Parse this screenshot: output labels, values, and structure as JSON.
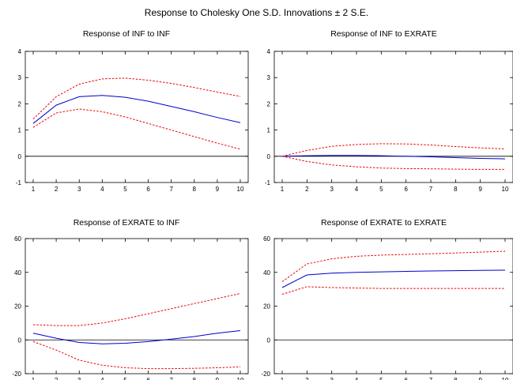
{
  "figure_title": "Response to Cholesky One S.D. Innovations ± 2 S.E.",
  "colors": {
    "response": "#0000cc",
    "band": "#ee0000",
    "axis": "#000000"
  },
  "chart_data": [
    {
      "type": "line",
      "title": "Response of INF to INF",
      "x": [
        1,
        2,
        3,
        4,
        5,
        6,
        7,
        8,
        9,
        10
      ],
      "ylim": [
        -1,
        4
      ],
      "yticks": [
        -1,
        0,
        1,
        2,
        3,
        4
      ],
      "series": [
        {
          "role": "lower",
          "values": [
            1.1,
            1.65,
            1.8,
            1.7,
            1.5,
            1.25,
            1.0,
            0.75,
            0.5,
            0.27
          ]
        },
        {
          "role": "response",
          "values": [
            1.25,
            1.95,
            2.27,
            2.32,
            2.25,
            2.1,
            1.9,
            1.7,
            1.48,
            1.28
          ]
        },
        {
          "role": "upper",
          "values": [
            1.42,
            2.27,
            2.75,
            2.95,
            2.98,
            2.9,
            2.78,
            2.62,
            2.45,
            2.28
          ]
        }
      ]
    },
    {
      "type": "line",
      "title": "Response of INF to EXRATE",
      "x": [
        1,
        2,
        3,
        4,
        5,
        6,
        7,
        8,
        9,
        10
      ],
      "ylim": [
        -1,
        4
      ],
      "yticks": [
        -1,
        0,
        1,
        2,
        3,
        4
      ],
      "series": [
        {
          "role": "lower",
          "values": [
            0,
            -0.2,
            -0.33,
            -0.4,
            -0.45,
            -0.47,
            -0.48,
            -0.49,
            -0.5,
            -0.5
          ]
        },
        {
          "role": "response",
          "values": [
            0,
            0.02,
            0.03,
            0.03,
            0.02,
            0.0,
            -0.02,
            -0.05,
            -0.08,
            -0.1
          ]
        },
        {
          "role": "upper",
          "values": [
            0,
            0.22,
            0.38,
            0.45,
            0.48,
            0.47,
            0.43,
            0.37,
            0.32,
            0.28
          ]
        }
      ]
    },
    {
      "type": "line",
      "title": "Response of EXRATE to INF",
      "x": [
        1,
        2,
        3,
        4,
        5,
        6,
        7,
        8,
        9,
        10
      ],
      "ylim": [
        -20,
        60
      ],
      "yticks": [
        -20,
        0,
        20,
        40,
        60
      ],
      "series": [
        {
          "role": "lower",
          "values": [
            -1,
            -6,
            -12,
            -15,
            -16.5,
            -17,
            -17,
            -16.8,
            -16.5,
            -16
          ]
        },
        {
          "role": "response",
          "values": [
            4,
            1,
            -1.5,
            -2.3,
            -2,
            -1,
            0.5,
            2,
            4,
            5.5
          ]
        },
        {
          "role": "upper",
          "values": [
            9,
            8.5,
            8.5,
            10,
            12.5,
            15.5,
            18.5,
            21.5,
            24.5,
            27.5
          ]
        }
      ]
    },
    {
      "type": "line",
      "title": "Response of EXRATE to EXRATE",
      "x": [
        1,
        2,
        3,
        4,
        5,
        6,
        7,
        8,
        9,
        10
      ],
      "ylim": [
        -20,
        60
      ],
      "yticks": [
        -20,
        0,
        20,
        40,
        60
      ],
      "series": [
        {
          "role": "lower",
          "values": [
            27,
            31.5,
            31,
            30.7,
            30.5,
            30.5,
            30.5,
            30.5,
            30.5,
            30.5
          ]
        },
        {
          "role": "response",
          "values": [
            31,
            38.5,
            39.5,
            40,
            40.3,
            40.6,
            40.8,
            41,
            41.2,
            41.3
          ]
        },
        {
          "role": "upper",
          "values": [
            34.5,
            45,
            48,
            49.5,
            50.2,
            50.6,
            51,
            51.5,
            52,
            52.5
          ]
        }
      ]
    }
  ]
}
